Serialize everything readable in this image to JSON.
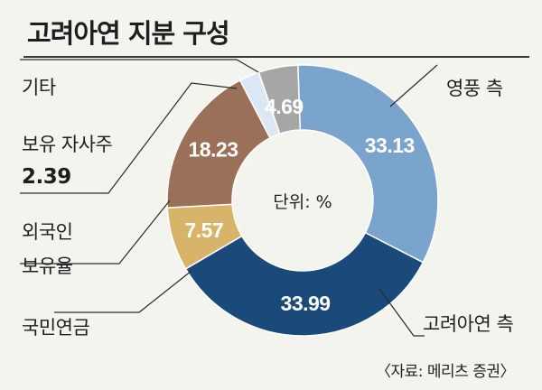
{
  "title": "고려아연 지분 구성",
  "source": "〈자료: 메리츠 증권〉",
  "chart_data": {
    "type": "pie",
    "subtype": "donut",
    "center_label": "단위: %",
    "slices": [
      {
        "label": "영풍 측",
        "value": 33.13,
        "value_label": "33.13",
        "color": "#7ba4cd"
      },
      {
        "label": "고려아연 측",
        "value": 33.99,
        "value_label": "33.99",
        "color": "#1a4a7a"
      },
      {
        "label": "국민연금",
        "value": 7.57,
        "value_label": "7.57",
        "color": "#d8b46a"
      },
      {
        "label": "외국인 보유율",
        "value": 18.23,
        "value_label": "18.23",
        "color": "#9b7059"
      },
      {
        "label": "보유 자사주",
        "value": 2.39,
        "value_label": "2.39",
        "color": "#dbe7f5"
      },
      {
        "label": "기타",
        "value": 4.69,
        "value_label": "4.69",
        "color": "#a6a6a6"
      }
    ],
    "outside_labels": [
      {
        "lines": [
          "영풍 측"
        ]
      },
      {
        "lines": [
          "고려아연 측"
        ]
      },
      {
        "lines": [
          "국민연금"
        ]
      },
      {
        "lines": [
          "외국인",
          "보유율"
        ]
      },
      {
        "lines": [
          "보유 자사주",
          "2.39"
        ]
      },
      {
        "lines": [
          "기타"
        ]
      }
    ]
  }
}
